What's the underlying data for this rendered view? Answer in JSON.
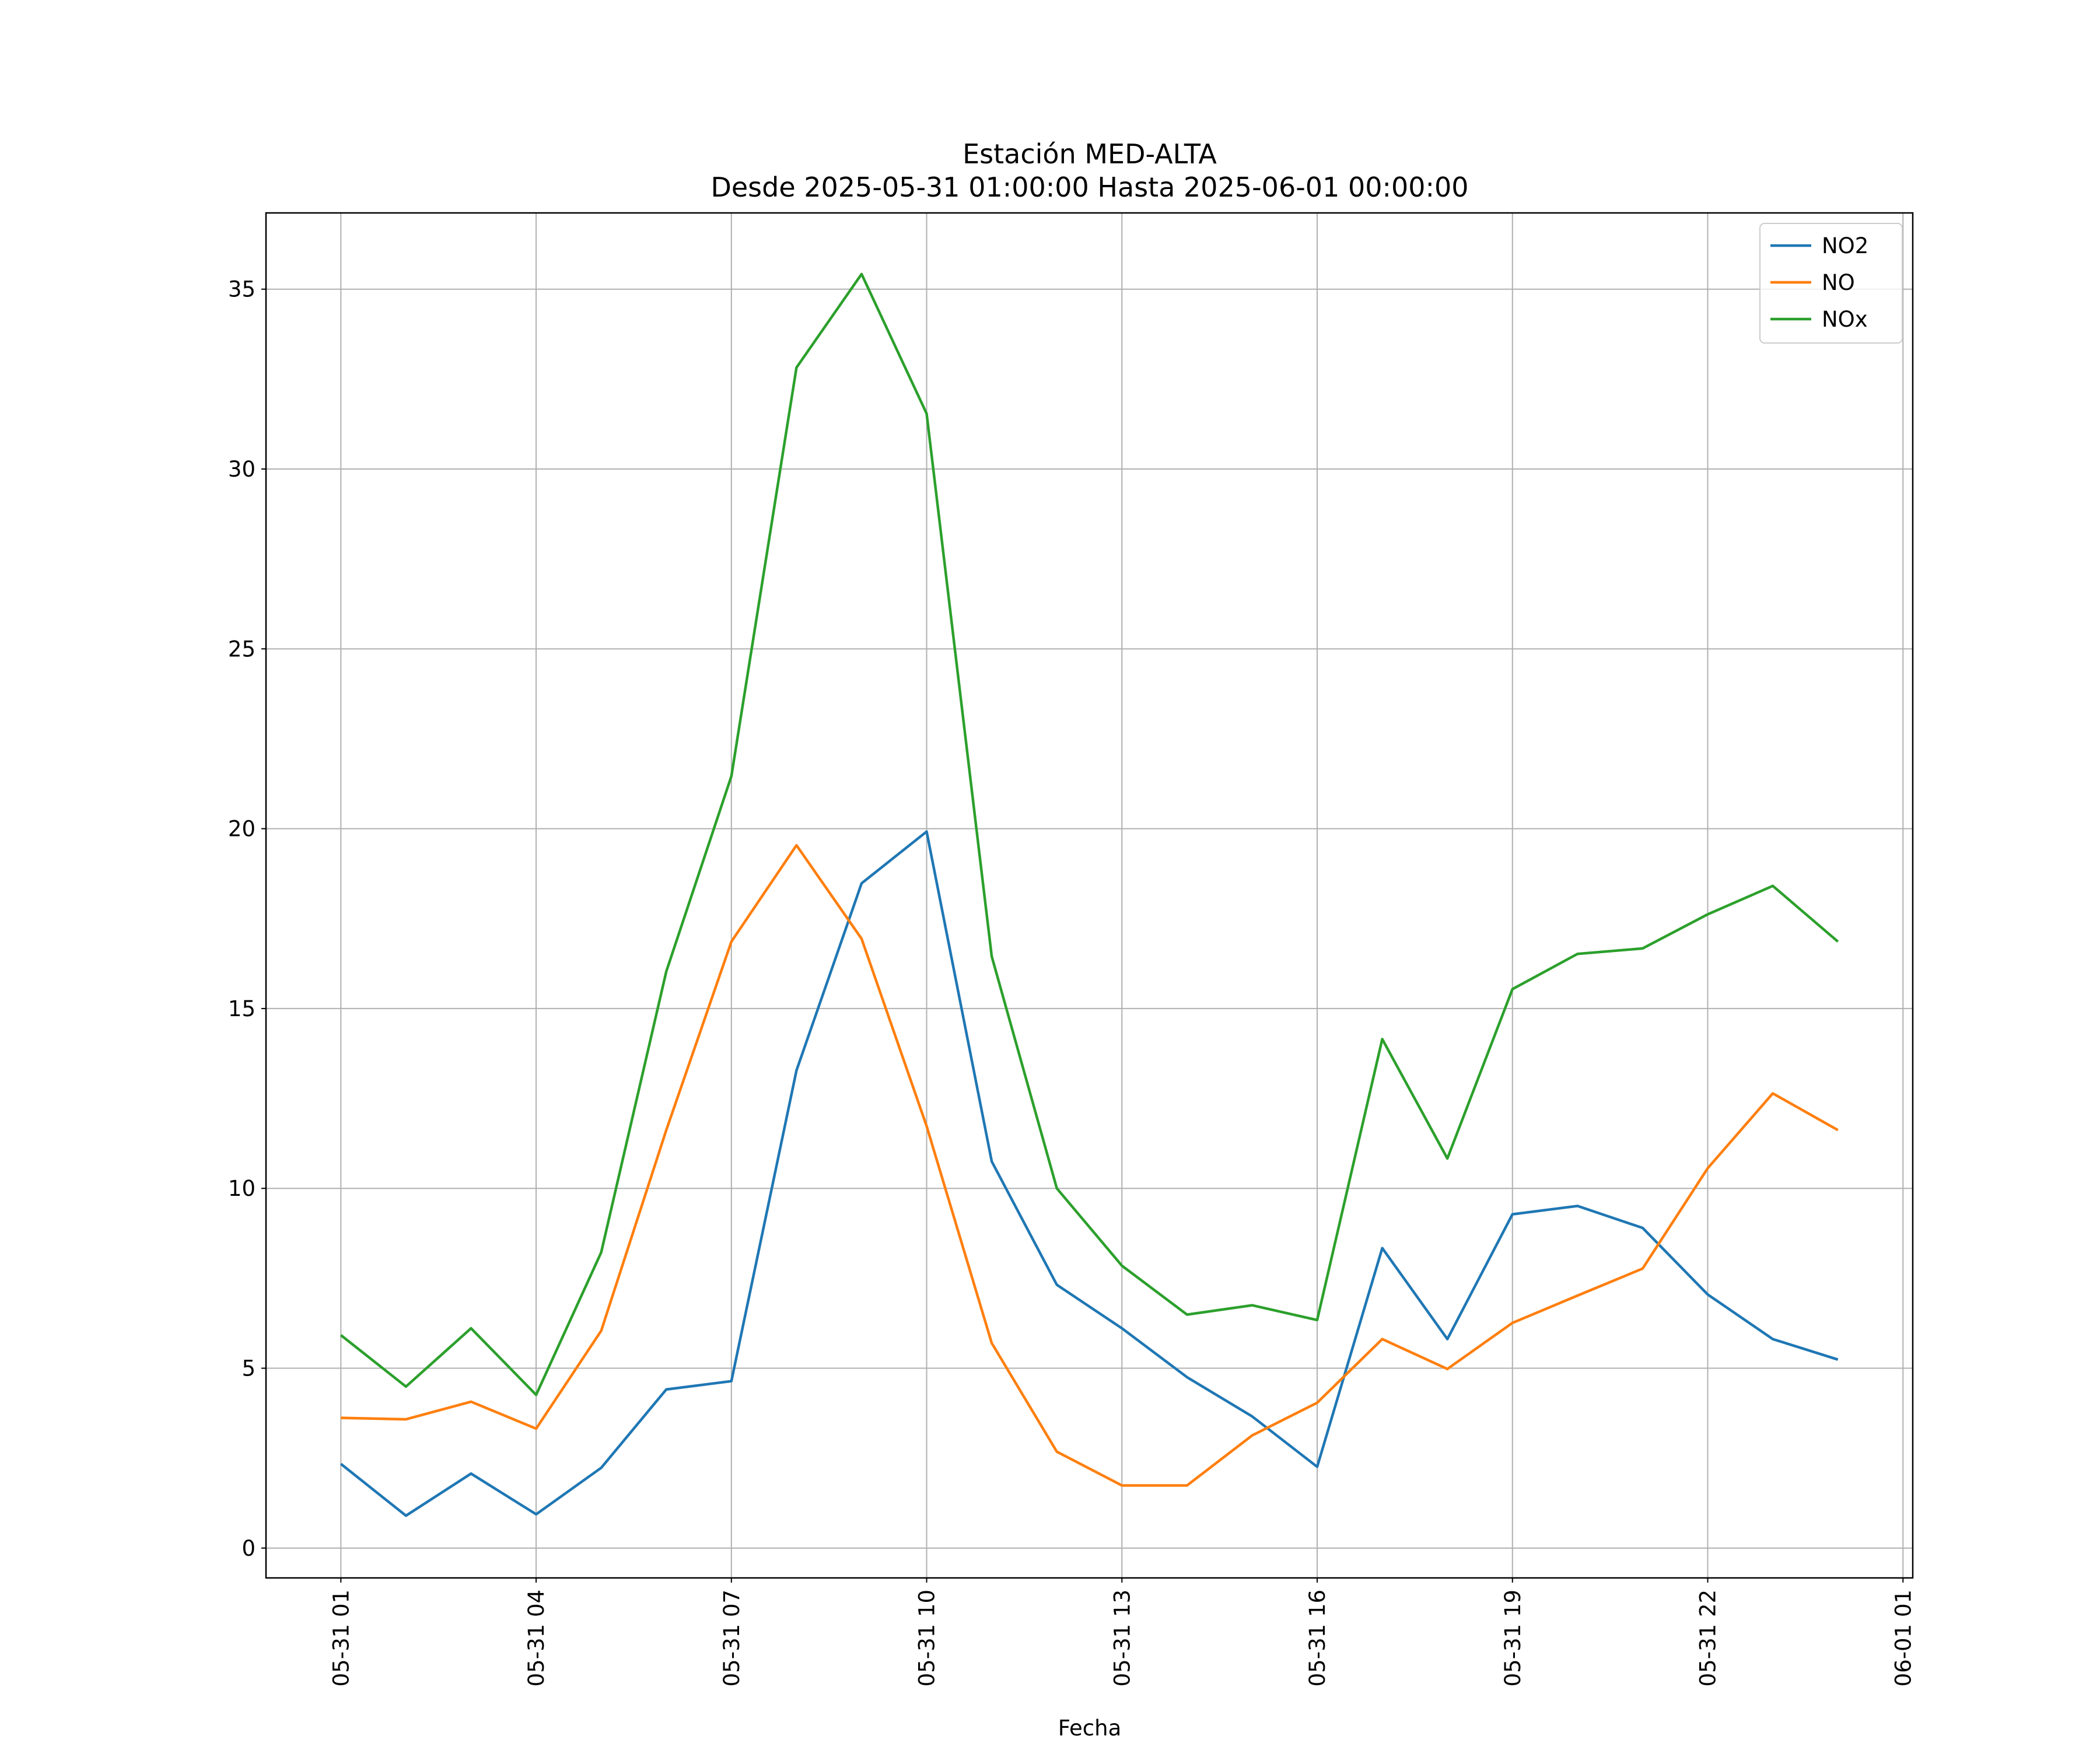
{
  "chart_data": {
    "type": "line",
    "title": "Estación MED-ALTA",
    "subtitle": "Desde 2025-05-31 01:00:00 Hasta 2025-06-01 00:00:00",
    "xlabel": "Fecha",
    "x": [
      "05-31 01",
      "05-31 02",
      "05-31 03",
      "05-31 04",
      "05-31 05",
      "05-31 06",
      "05-31 07",
      "05-31 08",
      "05-31 09",
      "05-31 10",
      "05-31 11",
      "05-31 12",
      "05-31 13",
      "05-31 14",
      "05-31 15",
      "05-31 16",
      "05-31 17",
      "05-31 18",
      "05-31 19",
      "05-31 20",
      "05-31 21",
      "05-31 22",
      "05-31 23",
      "06-01 00"
    ],
    "series": [
      {
        "name": "NO2",
        "color": "#1f77b4",
        "values": [
          2.34,
          0.9,
          2.07,
          0.94,
          2.23,
          4.41,
          4.64,
          13.28,
          18.48,
          19.92,
          10.75,
          7.32,
          6.11,
          4.75,
          3.66,
          2.26,
          8.34,
          5.81,
          9.28,
          9.51,
          8.9,
          7.05,
          5.81,
          5.24
        ]
      },
      {
        "name": "NO",
        "color": "#ff7f0e",
        "values": [
          3.62,
          3.58,
          4.07,
          3.32,
          6.04,
          11.62,
          16.86,
          19.54,
          16.94,
          11.73,
          5.7,
          2.68,
          1.74,
          1.74,
          3.13,
          4.04,
          5.81,
          4.98,
          6.26,
          7.02,
          7.77,
          10.56,
          12.64,
          11.62
        ]
      },
      {
        "name": "NOx",
        "color": "#2ca02c",
        "values": [
          5.92,
          4.49,
          6.11,
          4.26,
          8.22,
          16.03,
          21.46,
          32.82,
          35.42,
          31.54,
          16.45,
          10.0,
          7.85,
          6.49,
          6.75,
          6.34,
          14.15,
          10.83,
          15.54,
          16.52,
          16.67,
          17.62,
          18.41,
          16.86
        ]
      }
    ],
    "xlim": [
      "05-30 23:51",
      "06-01 01:09"
    ],
    "xticks": [
      "05-31 01",
      "05-31 04",
      "05-31 07",
      "05-31 10",
      "05-31 13",
      "05-31 16",
      "05-31 19",
      "05-31 22",
      "06-01 01"
    ],
    "ylim": [
      -0.83,
      37.12
    ],
    "yticks": [
      0,
      5,
      10,
      15,
      20,
      25,
      30,
      35
    ],
    "grid": true,
    "legend": "upper right"
  }
}
